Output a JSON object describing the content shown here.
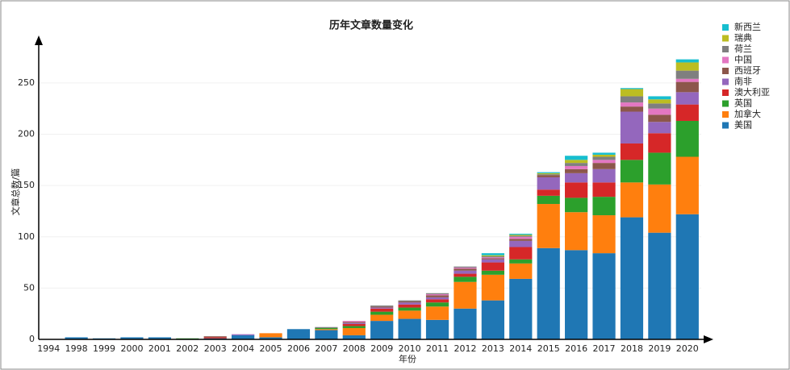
{
  "chart_data": {
    "type": "stacked_bar",
    "title": "历年文章数量变化",
    "xlabel": "年份",
    "ylabel": "文章总数/篇",
    "categories": [
      "1994",
      "1998",
      "1999",
      "2000",
      "2001",
      "2002",
      "2003",
      "2004",
      "2005",
      "2006",
      "2007",
      "2008",
      "2009",
      "2010",
      "2011",
      "2012",
      "2013",
      "2014",
      "2015",
      "2016",
      "2017",
      "2018",
      "2019",
      "2020"
    ],
    "series": [
      {
        "name": "美国",
        "color": "#1f77b4",
        "values": [
          0,
          2,
          1,
          2,
          2,
          0,
          1,
          4,
          2,
          10,
          9,
          4,
          18,
          20,
          19,
          30,
          38,
          59,
          89,
          87,
          84,
          119,
          104,
          122
        ]
      },
      {
        "name": "加拿大",
        "color": "#ff7f0e",
        "values": [
          0,
          0,
          0,
          0,
          0,
          0,
          0,
          0,
          4,
          0,
          1,
          7,
          6,
          8,
          13,
          26,
          25,
          15,
          43,
          37,
          37,
          34,
          47,
          56
        ]
      },
      {
        "name": "英国",
        "color": "#2ca02c",
        "values": [
          0,
          0,
          0,
          0,
          0,
          1,
          0,
          0,
          0,
          0,
          1,
          2,
          3,
          3,
          4,
          5,
          4,
          4,
          8,
          14,
          18,
          22,
          31,
          35
        ]
      },
      {
        "name": "澳大利亚",
        "color": "#d62728",
        "values": [
          0,
          0,
          0,
          0,
          0,
          0,
          1,
          0,
          0,
          0,
          0,
          2,
          3,
          3,
          3,
          3,
          8,
          12,
          6,
          15,
          14,
          16,
          19,
          16
        ]
      },
      {
        "name": "南非",
        "color": "#9467bd",
        "values": [
          0,
          0,
          0,
          0,
          0,
          0,
          0,
          1,
          0,
          0,
          0,
          1,
          1,
          2,
          2,
          3,
          3,
          6,
          12,
          9,
          13,
          31,
          11,
          12
        ]
      },
      {
        "name": "西班牙",
        "color": "#8c564b",
        "values": [
          0,
          0,
          0,
          0,
          0,
          0,
          1,
          0,
          0,
          0,
          0,
          1,
          1,
          1,
          2,
          2,
          1,
          2,
          2,
          4,
          6,
          5,
          7,
          10
        ]
      },
      {
        "name": "中国",
        "color": "#e377c2",
        "values": [
          0,
          0,
          0,
          0,
          0,
          0,
          0,
          0,
          0,
          0,
          0,
          1,
          0,
          0,
          1,
          1,
          1,
          2,
          0,
          3,
          3,
          4,
          6,
          3
        ]
      },
      {
        "name": "荷兰",
        "color": "#7f7f7f",
        "values": [
          0,
          0,
          0,
          0,
          0,
          0,
          0,
          0,
          0,
          0,
          1,
          0,
          1,
          1,
          1,
          1,
          1,
          1,
          1,
          3,
          3,
          6,
          5,
          8
        ]
      },
      {
        "name": "瑞典",
        "color": "#bcbd22",
        "values": [
          0,
          0,
          0,
          0,
          0,
          0,
          0,
          0,
          0,
          0,
          0,
          0,
          0,
          0,
          0,
          0,
          1,
          1,
          1,
          3,
          2,
          7,
          4,
          8
        ]
      },
      {
        "name": "新西兰",
        "color": "#17becf",
        "values": [
          0,
          0,
          0,
          0,
          0,
          0,
          0,
          0,
          0,
          0,
          0,
          0,
          0,
          0,
          0,
          0,
          2,
          1,
          1,
          4,
          2,
          1,
          3,
          3
        ]
      }
    ],
    "ylim": [
      0,
      290
    ],
    "yticks": [
      0,
      50,
      100,
      150,
      200,
      250
    ],
    "grid": true
  }
}
